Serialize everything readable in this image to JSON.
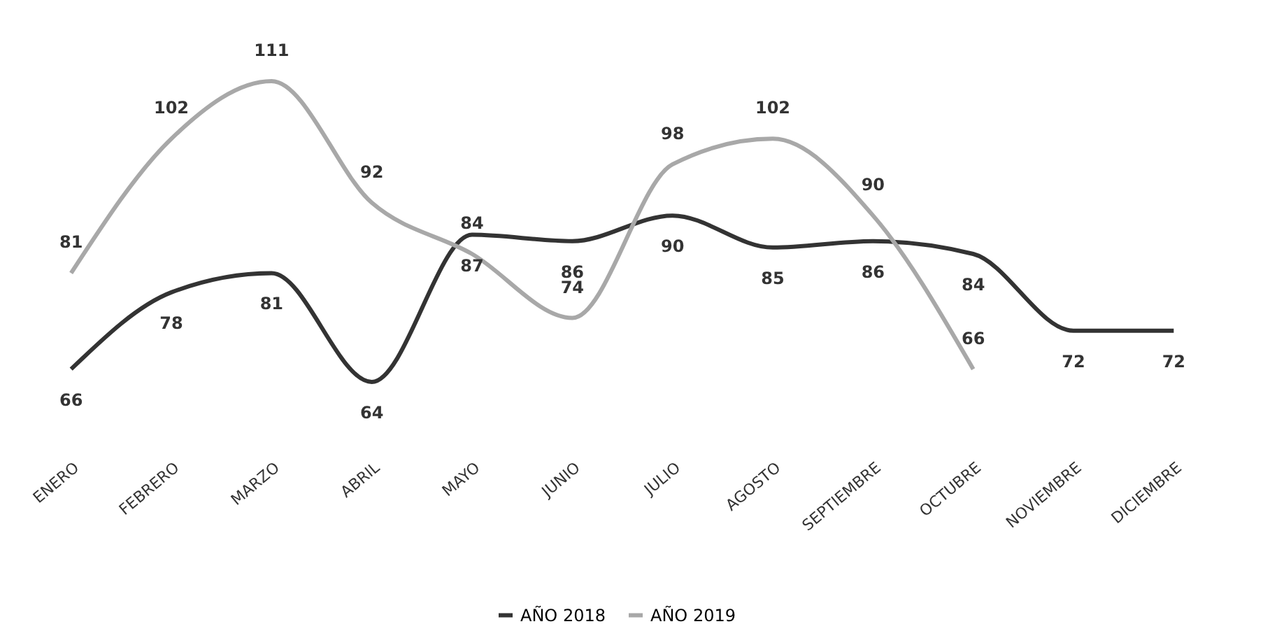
{
  "chart_data": {
    "type": "line",
    "categories": [
      "ENERO",
      "FEBRERO",
      "MARZO",
      "ABRIL",
      "MAYO",
      "JUNIO",
      "JULIO",
      "AGOSTO",
      "SEPTIEMBRE",
      "OCTUBRE",
      "NOVIEMBRE",
      "DICIEMBRE"
    ],
    "series": [
      {
        "name": "AÑO 2018",
        "color": "#333333",
        "values": [
          66,
          78,
          81,
          64,
          87,
          86,
          90,
          85,
          86,
          84,
          72,
          72
        ]
      },
      {
        "name": "AÑO 2019",
        "color": "#a8a8a8",
        "values": [
          81,
          102,
          111,
          92,
          84,
          74,
          98,
          102,
          90,
          66,
          null,
          null
        ]
      }
    ],
    "data_labels": true,
    "legend": "bottom",
    "grid": false
  }
}
